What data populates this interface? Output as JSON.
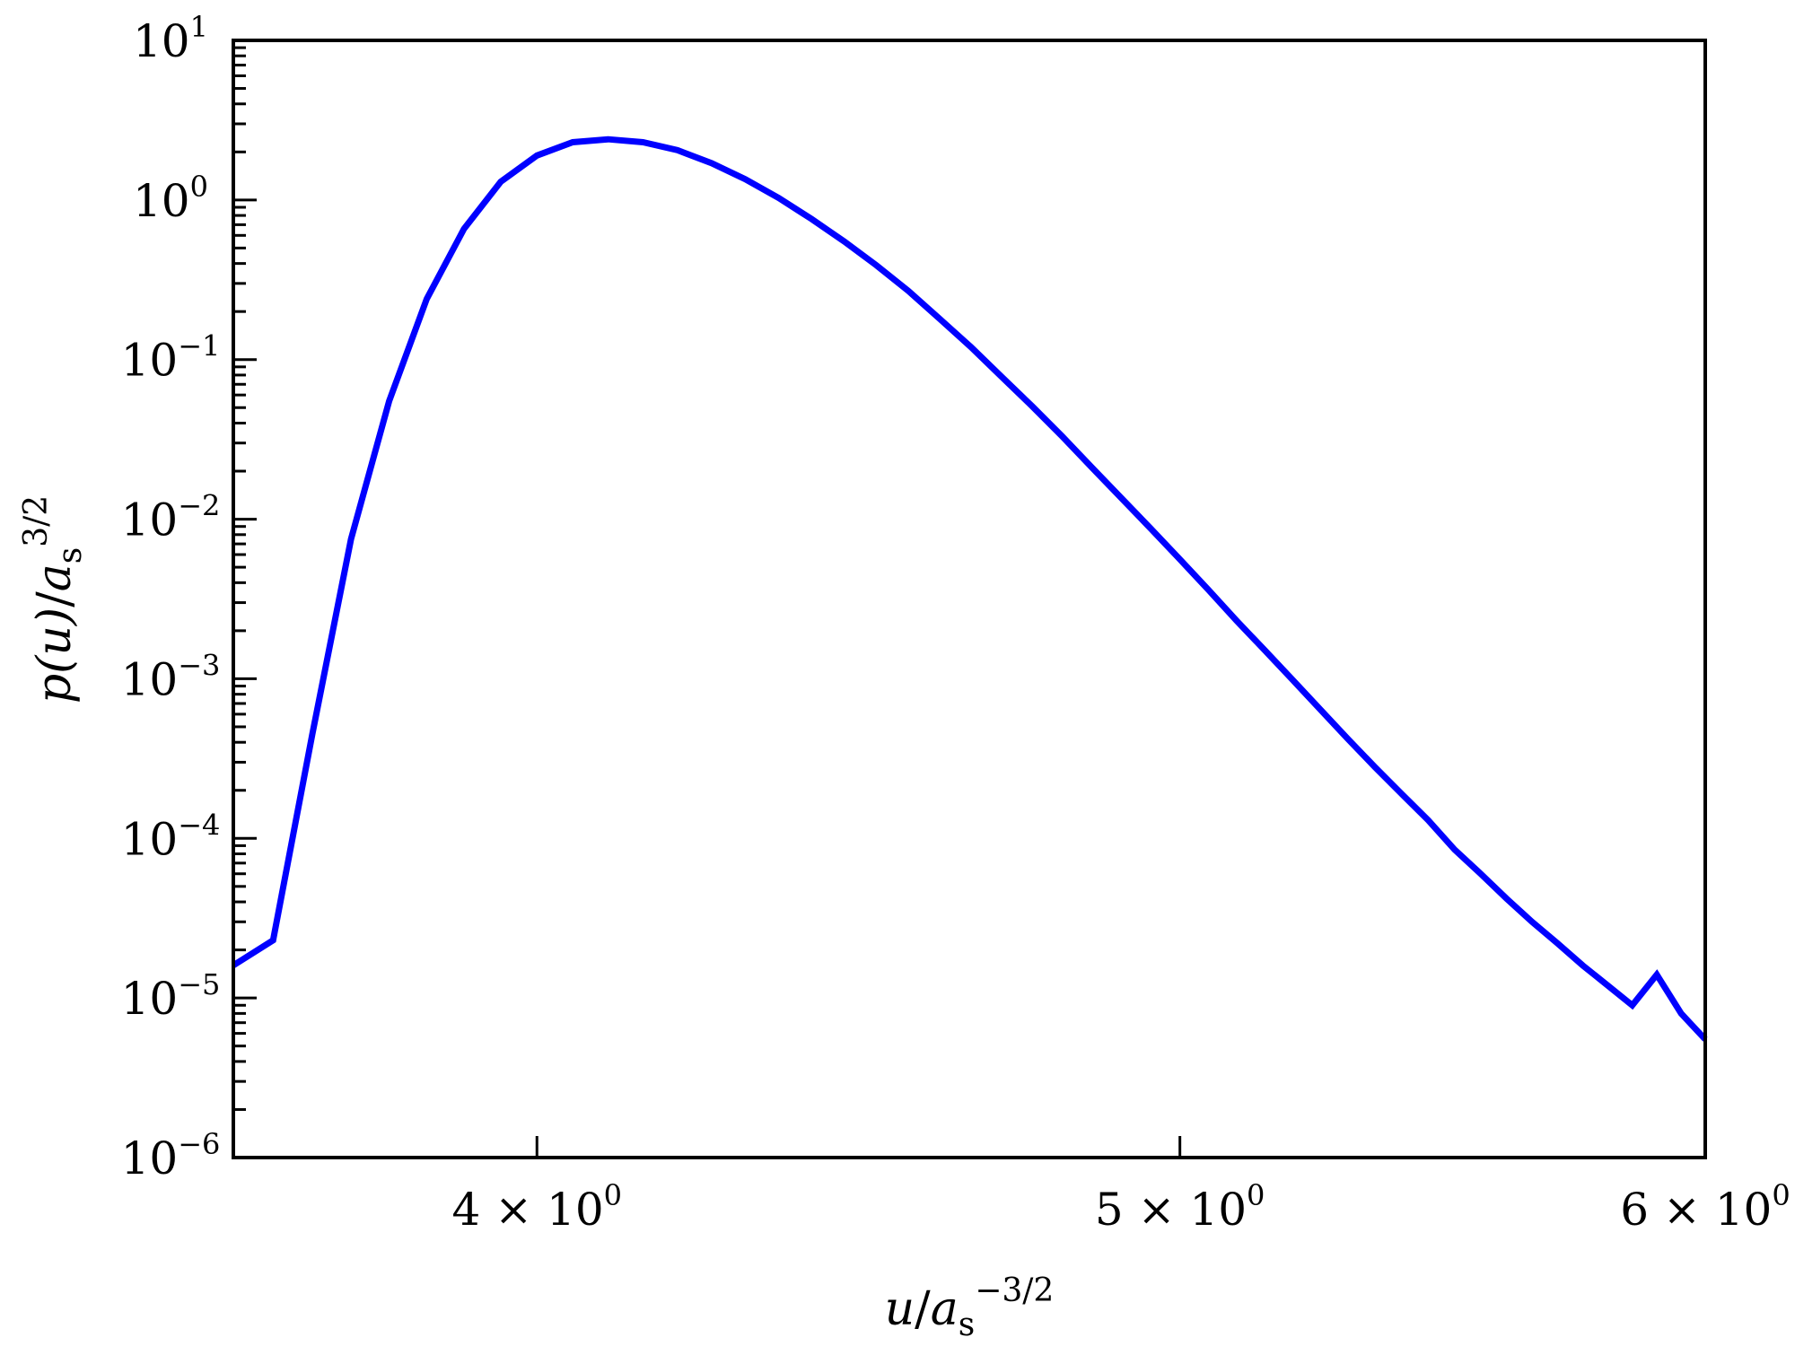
{
  "chart_data": {
    "type": "line",
    "x_scale": "log",
    "y_scale": "log",
    "xlim": [
      3.6,
      6.0
    ],
    "ylim": [
      1e-06,
      10
    ],
    "grid": false,
    "legend": "none",
    "line_color": "#0000ff",
    "xlabel": {
      "var": "u",
      "sep": "/",
      "sym": "a",
      "sub": "s",
      "sup": "−3/2"
    },
    "ylabel": {
      "var": "p(u)",
      "sep": "/",
      "sym": "a",
      "sub": "s",
      "sup": "3/2"
    },
    "x_ticks": [
      {
        "value": 4,
        "mantissa": "4",
        "times": "×",
        "base": "10",
        "exp": "0"
      },
      {
        "value": 5,
        "mantissa": "5",
        "times": "×",
        "base": "10",
        "exp": "0"
      },
      {
        "value": 6,
        "mantissa": "6",
        "times": "×",
        "base": "10",
        "exp": "0"
      }
    ],
    "y_ticks": [
      {
        "value": 10,
        "base": "10",
        "exp": "1"
      },
      {
        "value": 1,
        "base": "10",
        "exp": "0"
      },
      {
        "value": 0.1,
        "base": "10",
        "exp": "−1"
      },
      {
        "value": 0.01,
        "base": "10",
        "exp": "−2"
      },
      {
        "value": 0.001,
        "base": "10",
        "exp": "−3"
      },
      {
        "value": 0.0001,
        "base": "10",
        "exp": "−4"
      },
      {
        "value": 1e-05,
        "base": "10",
        "exp": "−5"
      },
      {
        "value": 1e-06,
        "base": "10",
        "exp": "−6"
      }
    ],
    "series": [
      {
        "x": [
          3.6,
          3.65,
          3.7,
          3.75,
          3.8,
          3.85,
          3.9,
          3.95,
          4.0,
          4.05,
          4.1,
          4.15,
          4.2,
          4.25,
          4.3,
          4.35,
          4.4,
          4.45,
          4.5,
          4.55,
          4.6,
          4.65,
          4.7,
          4.75,
          4.8,
          4.85,
          4.9,
          4.95,
          5.0,
          5.05,
          5.1,
          5.15,
          5.2,
          5.25,
          5.3,
          5.35,
          5.4,
          5.45,
          5.5,
          5.55,
          5.6,
          5.65,
          5.7,
          5.75,
          5.8,
          5.85,
          5.9,
          5.95,
          6.0
        ],
        "y": [
          1.6e-05,
          2.3e-05,
          0.00045,
          0.0075,
          0.055,
          0.24,
          0.66,
          1.3,
          1.9,
          2.3,
          2.4,
          2.3,
          2.05,
          1.7,
          1.35,
          1.03,
          0.76,
          0.55,
          0.39,
          0.27,
          0.18,
          0.12,
          0.078,
          0.051,
          0.033,
          0.021,
          0.0135,
          0.0087,
          0.0056,
          0.0036,
          0.0023,
          0.0015,
          0.00098,
          0.00064,
          0.00042,
          0.00028,
          0.00019,
          0.00013,
          8.5e-05,
          6e-05,
          4.2e-05,
          3e-05,
          2.2e-05,
          1.6e-05,
          1.2e-05,
          9e-06,
          1.4e-05,
          8e-06,
          5.5e-06
        ]
      }
    ]
  }
}
